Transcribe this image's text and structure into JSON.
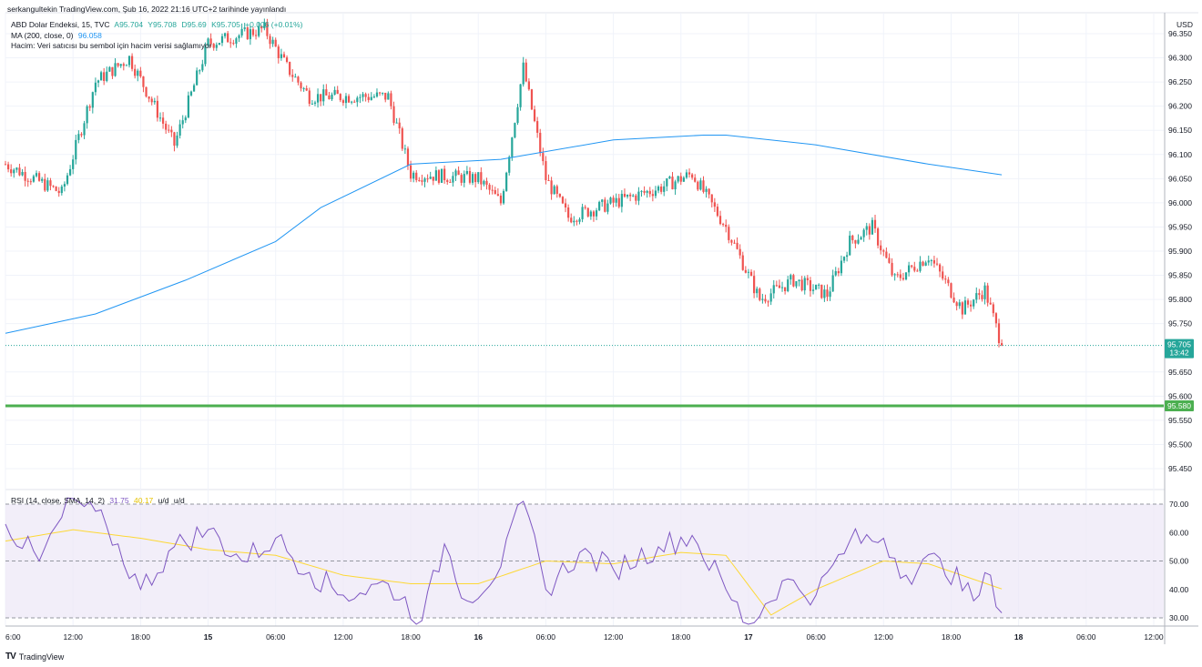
{
  "header": {
    "published": "serkangultekin TradingView.com, Şub 16, 2022 21:16 UTC+2 tarihinde yayınlandı"
  },
  "legend": {
    "symbol": "ABD Dolar Endeksi, 15, TVC",
    "open": "A95.704",
    "high": "Y95.708",
    "low": "D95.69",
    "close": "K95.705",
    "change": "+0.006 (+0.01%)",
    "ma_label": "MA (200, close, 0)",
    "ma_value": "96.058",
    "volume_note": "Hacim: Veri satıcısı bu sembol için hacim verisi sağlamıyor",
    "rsi_label": "RSI (14, close, SMA, 14, 2)",
    "rsi_value": "31.75",
    "rsi_ma_value": "40.17",
    "rsi_ud1": "u/d",
    "rsi_ud2": "u/d"
  },
  "price_axis": {
    "currency": "USD",
    "ticks": [
      "96.350",
      "96.300",
      "96.250",
      "96.200",
      "96.150",
      "96.100",
      "96.050",
      "96.000",
      "95.950",
      "95.900",
      "95.850",
      "95.800",
      "95.750",
      "95.650",
      "95.600",
      "95.550",
      "95.500",
      "95.450"
    ],
    "last_price": "95.705",
    "countdown": "13:42",
    "level_price": "95.580"
  },
  "rsi_axis": {
    "ticks": [
      "70.00",
      "60.00",
      "50.00",
      "40.00",
      "30.00"
    ]
  },
  "time_axis": {
    "ticks": [
      "6:00",
      "12:00",
      "18:00",
      "15",
      "06:00",
      "12:00",
      "18:00",
      "16",
      "06:00",
      "12:00",
      "18:00",
      "17",
      "06:00",
      "12:00",
      "18:00",
      "18",
      "06:00",
      "12:00"
    ]
  },
  "footer": {
    "brand": "TradingView"
  },
  "colors": {
    "up": "#26a69a",
    "down": "#ef5350",
    "ma": "#2196f3",
    "level": "#4caf50",
    "rsi": "#7e57c2",
    "rsi_ma": "#fdd835",
    "rsi_band": "#ede7f6"
  },
  "chart_data": [
    {
      "type": "candlestick",
      "title": "ABD Dolar Endeksi, 15, TVC",
      "ylabel": "USD",
      "ylim": [
        95.42,
        96.38
      ],
      "x_range": [
        "6:00 (14 Feb)",
        "12:00 (18 Feb)"
      ],
      "last_close": 95.705,
      "horizontal_level": 95.58,
      "anchor_points": [
        {
          "x_hours": 0,
          "price": 96.08
        },
        {
          "x_hours": 5,
          "price": 96.02
        },
        {
          "x_hours": 8,
          "price": 96.25
        },
        {
          "x_hours": 11,
          "price": 96.3
        },
        {
          "x_hours": 15,
          "price": 96.12
        },
        {
          "x_hours": 18,
          "price": 96.33
        },
        {
          "x_hours": 23,
          "price": 96.36
        },
        {
          "x_hours": 25,
          "price": 96.28
        },
        {
          "x_hours": 27,
          "price": 96.22
        },
        {
          "x_hours": 34,
          "price": 96.22
        },
        {
          "x_hours": 36,
          "price": 96.06
        },
        {
          "x_hours": 42,
          "price": 96.05
        },
        {
          "x_hours": 44,
          "price": 96.0
        },
        {
          "x_hours": 46,
          "price": 96.28
        },
        {
          "x_hours": 48,
          "price": 96.05
        },
        {
          "x_hours": 50,
          "price": 95.97
        },
        {
          "x_hours": 54,
          "price": 96.0
        },
        {
          "x_hours": 58,
          "price": 96.03
        },
        {
          "x_hours": 61,
          "price": 96.06
        },
        {
          "x_hours": 64,
          "price": 95.95
        },
        {
          "x_hours": 67,
          "price": 95.8
        },
        {
          "x_hours": 70,
          "price": 95.84
        },
        {
          "x_hours": 73,
          "price": 95.81
        },
        {
          "x_hours": 75,
          "price": 95.92
        },
        {
          "x_hours": 77,
          "price": 95.95
        },
        {
          "x_hours": 79,
          "price": 95.84
        },
        {
          "x_hours": 82,
          "price": 95.89
        },
        {
          "x_hours": 85,
          "price": 95.78
        },
        {
          "x_hours": 87,
          "price": 95.82
        },
        {
          "x_hours": 88.5,
          "price": 95.705
        }
      ],
      "ma200": [
        {
          "x_hours": 0,
          "price": 95.73
        },
        {
          "x_hours": 8,
          "price": 95.77
        },
        {
          "x_hours": 16,
          "price": 95.84
        },
        {
          "x_hours": 24,
          "price": 95.92
        },
        {
          "x_hours": 28,
          "price": 95.99
        },
        {
          "x_hours": 36,
          "price": 96.08
        },
        {
          "x_hours": 44,
          "price": 96.09
        },
        {
          "x_hours": 54,
          "price": 96.13
        },
        {
          "x_hours": 62,
          "price": 96.14
        },
        {
          "x_hours": 64,
          "price": 96.14
        },
        {
          "x_hours": 72,
          "price": 96.12
        },
        {
          "x_hours": 82,
          "price": 96.08
        },
        {
          "x_hours": 88.5,
          "price": 96.058
        }
      ]
    },
    {
      "type": "line",
      "title": "RSI (14, close, SMA, 14, 2)",
      "ylim": [
        28,
        72
      ],
      "bands": [
        70,
        50,
        30
      ],
      "series": [
        {
          "name": "RSI",
          "points": [
            {
              "x_hours": 0,
              "value": 63
            },
            {
              "x_hours": 3,
              "value": 50
            },
            {
              "x_hours": 6,
              "value": 72
            },
            {
              "x_hours": 9,
              "value": 62
            },
            {
              "x_hours": 12,
              "value": 40
            },
            {
              "x_hours": 15,
              "value": 55
            },
            {
              "x_hours": 18,
              "value": 61
            },
            {
              "x_hours": 21,
              "value": 50
            },
            {
              "x_hours": 24,
              "value": 58
            },
            {
              "x_hours": 27,
              "value": 46
            },
            {
              "x_hours": 30,
              "value": 38
            },
            {
              "x_hours": 34,
              "value": 42
            },
            {
              "x_hours": 37,
              "value": 29
            },
            {
              "x_hours": 39,
              "value": 56
            },
            {
              "x_hours": 41,
              "value": 36
            },
            {
              "x_hours": 44,
              "value": 48
            },
            {
              "x_hours": 46,
              "value": 71
            },
            {
              "x_hours": 48,
              "value": 40
            },
            {
              "x_hours": 51,
              "value": 53
            },
            {
              "x_hours": 54,
              "value": 47
            },
            {
              "x_hours": 58,
              "value": 55
            },
            {
              "x_hours": 61,
              "value": 59
            },
            {
              "x_hours": 64,
              "value": 40
            },
            {
              "x_hours": 66,
              "value": 27
            },
            {
              "x_hours": 69,
              "value": 43
            },
            {
              "x_hours": 72,
              "value": 38
            },
            {
              "x_hours": 75,
              "value": 57
            },
            {
              "x_hours": 78,
              "value": 58
            },
            {
              "x_hours": 80,
              "value": 45
            },
            {
              "x_hours": 83,
              "value": 51
            },
            {
              "x_hours": 86,
              "value": 36
            },
            {
              "x_hours": 87.5,
              "value": 45
            },
            {
              "x_hours": 88.5,
              "value": 31.75
            }
          ]
        },
        {
          "name": "RSI-based MA",
          "points": [
            {
              "x_hours": 0,
              "value": 57
            },
            {
              "x_hours": 6,
              "value": 61
            },
            {
              "x_hours": 12,
              "value": 58
            },
            {
              "x_hours": 18,
              "value": 54
            },
            {
              "x_hours": 24,
              "value": 52
            },
            {
              "x_hours": 30,
              "value": 45
            },
            {
              "x_hours": 36,
              "value": 42
            },
            {
              "x_hours": 42,
              "value": 42
            },
            {
              "x_hours": 48,
              "value": 50
            },
            {
              "x_hours": 54,
              "value": 49
            },
            {
              "x_hours": 60,
              "value": 53
            },
            {
              "x_hours": 64,
              "value": 52
            },
            {
              "x_hours": 68,
              "value": 31
            },
            {
              "x_hours": 72,
              "value": 40
            },
            {
              "x_hours": 78,
              "value": 50
            },
            {
              "x_hours": 82,
              "value": 49
            },
            {
              "x_hours": 88.5,
              "value": 40.17
            }
          ]
        }
      ]
    }
  ]
}
